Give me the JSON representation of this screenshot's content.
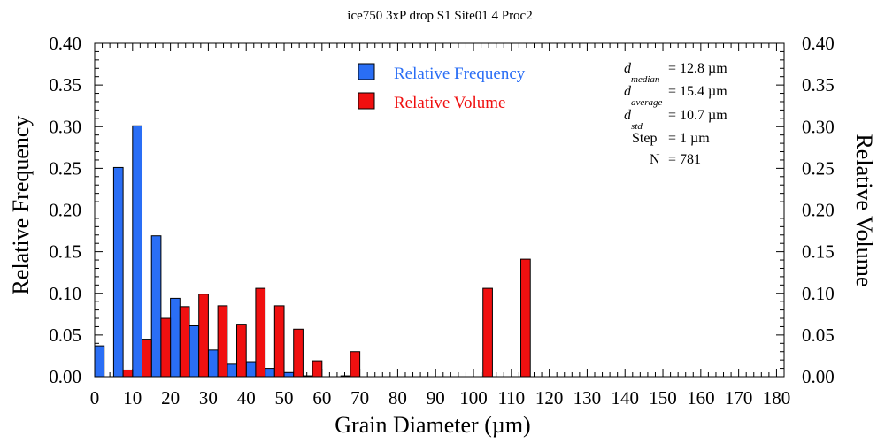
{
  "chart_data": {
    "type": "bar",
    "title": "ice750 3xP drop S1 Site01 4 Proc2",
    "xlabel": "Grain Diameter (µm)",
    "ylabel": "Relative Frequency",
    "y2label": "Relative Volume",
    "xlim": [
      0,
      182
    ],
    "ylim": [
      0,
      0.4
    ],
    "xticks": [
      "0",
      "10",
      "20",
      "30",
      "40",
      "50",
      "60",
      "70",
      "80",
      "90",
      "100",
      "110",
      "120",
      "130",
      "140",
      "150",
      "160",
      "170",
      "180"
    ],
    "yticks": [
      "0.00",
      "0.05",
      "0.10",
      "0.15",
      "0.20",
      "0.25",
      "0.30",
      "0.35",
      "0.40"
    ],
    "bin_centers": [
      2.5,
      7.5,
      12.5,
      17.5,
      22.5,
      27.5,
      32.5,
      37.5,
      42.5,
      47.5,
      52.5,
      57.5,
      62.5,
      67.5,
      102.5,
      112.5
    ],
    "series": [
      {
        "name": "Relative Frequency",
        "color": "#2a6ef5",
        "values": [
          0.037,
          0.251,
          0.301,
          0.169,
          0.094,
          0.061,
          0.032,
          0.015,
          0.018,
          0.01,
          0.005,
          0.001,
          0.0,
          0.001,
          0.0,
          0.0
        ]
      },
      {
        "name": "Relative Volume",
        "color": "#f01010",
        "values": [
          0.0,
          0.008,
          0.045,
          0.07,
          0.084,
          0.099,
          0.085,
          0.063,
          0.106,
          0.085,
          0.057,
          0.019,
          0.0,
          0.03,
          0.106,
          0.141
        ]
      }
    ],
    "legend_position": "top-center"
  },
  "stats": [
    {
      "symbol": "d",
      "sub": "median",
      "value": "=  12.8 µm"
    },
    {
      "symbol": "d",
      "sub": "average",
      "value": "=  15.4 µm"
    },
    {
      "symbol": "d",
      "sub": "std",
      "value": "=  10.7 µm"
    },
    {
      "symbol": "",
      "sub": "",
      "label": "Step",
      "value": "=  1 µm"
    },
    {
      "symbol": "",
      "sub": "",
      "label": "N",
      "value": "= 781"
    }
  ]
}
